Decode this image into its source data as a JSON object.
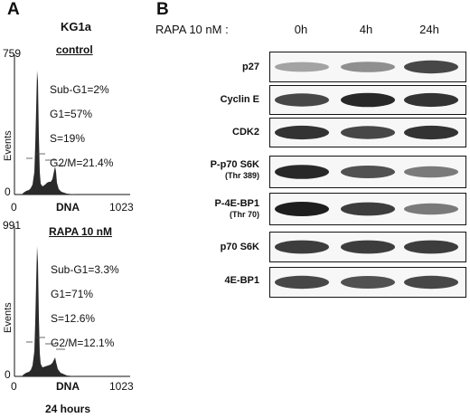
{
  "panel_a": {
    "letter": "A",
    "cell_line": "KG1a",
    "x_axis": {
      "min": "0",
      "max": "1023",
      "label": "DNA"
    },
    "histograms": [
      {
        "condition": "control",
        "y_max": "759",
        "y_label": "Events",
        "stats": [
          "Sub-G1=2%",
          "G1=57%",
          "S=19%",
          "G2/M=21.4%"
        ]
      },
      {
        "condition": "RAPA 10 nM",
        "y_max": "991",
        "y_label": "Events",
        "stats": [
          "Sub-G1=3.3%",
          "G1=71%",
          "S=12.6%",
          "G2/M=12.1%"
        ]
      }
    ],
    "footer": "24 hours"
  },
  "panel_b": {
    "letter": "B",
    "treatment_label": "RAPA 10 nM :",
    "timepoints": [
      "0h",
      "4h",
      "24h"
    ],
    "blots": [
      {
        "label": "p27",
        "sublabel": "",
        "intensities": [
          0.35,
          0.45,
          0.8
        ]
      },
      {
        "label": "Cyclin  E",
        "sublabel": "",
        "intensities": [
          0.8,
          0.95,
          0.9
        ]
      },
      {
        "label": "CDK2",
        "sublabel": "",
        "intensities": [
          0.9,
          0.8,
          0.9
        ]
      },
      {
        "label": "P-p70 S6K",
        "sublabel": "(Thr 389)",
        "intensities": [
          0.95,
          0.75,
          0.55
        ]
      },
      {
        "label": "P-4E-BP1",
        "sublabel": "(Thr 70)",
        "intensities": [
          1.0,
          0.85,
          0.55
        ]
      },
      {
        "label": "p70 S6K",
        "sublabel": "",
        "intensities": [
          0.85,
          0.85,
          0.85
        ]
      },
      {
        "label": "4E-BP1",
        "sublabel": "",
        "intensities": [
          0.8,
          0.75,
          0.8
        ]
      }
    ]
  }
}
